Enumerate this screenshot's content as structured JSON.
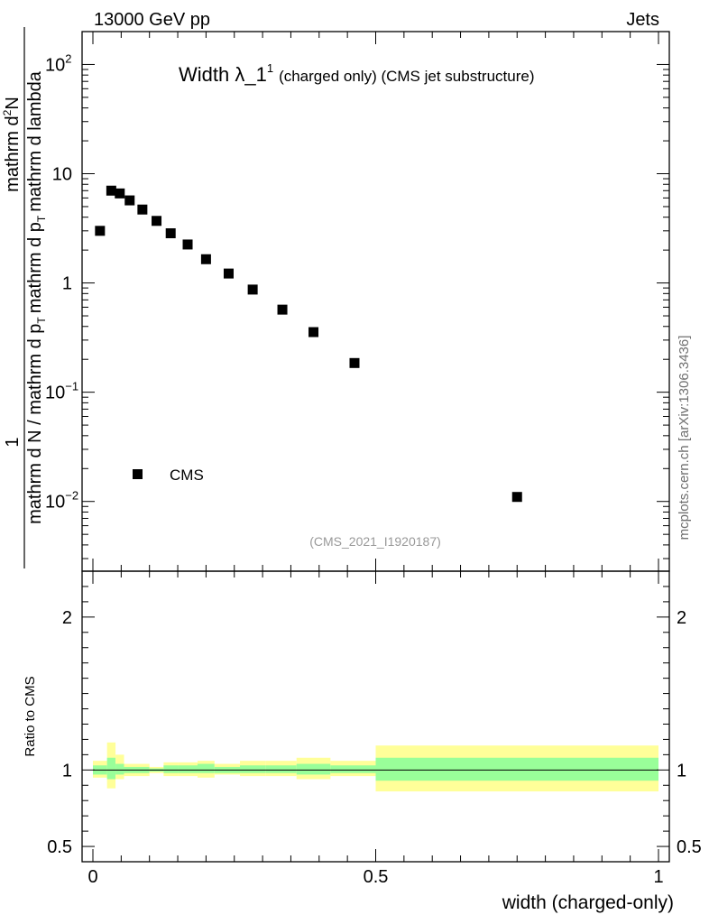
{
  "header": {
    "left": "13000 GeV pp",
    "right": "Jets"
  },
  "plot_title": {
    "main": "Width λ_1",
    "superscript": "1",
    "sub": "(charged only) (CMS jet substructure)"
  },
  "ylabel_main": {
    "numerator": "1",
    "denominator": "mathrm d N / mathrm d p",
    "denominator_sub": "T",
    "tail": "mathrm d p",
    "tail_sub": "T",
    "tail2": "mathrm d lambda",
    "top_num": "mathrm d",
    "top_sup": "2",
    "top_N": "N"
  },
  "ylabel_ratio": "Ratio to CMS",
  "xlabel": "width (charged-only)",
  "analysis_tag": "(CMS_2021_I1920187)",
  "side_watermark": "mcplots.cern.ch [arXiv:1306.3436]",
  "legend": {
    "label": "CMS"
  },
  "colors": {
    "marker": "#000000",
    "band_inner": "#99ff99",
    "band_outer": "#ffff99",
    "tag": "#999999"
  },
  "chart_data": [
    {
      "type": "scatter",
      "title": "Width λ_1^1 (charged only) (CMS jet substructure)",
      "xlabel": "width (charged-only)",
      "yscale": "log",
      "xlim": [
        0,
        1
      ],
      "ylim": [
        0.0023,
        200
      ],
      "y_ticks": [
        {
          "value": 0.01,
          "base": "10",
          "exp": "−2"
        },
        {
          "value": 0.1,
          "base": "10",
          "exp": "−1"
        },
        {
          "value": 1,
          "base": "1",
          "exp": ""
        },
        {
          "value": 10,
          "base": "10",
          "exp": ""
        },
        {
          "value": 100,
          "base": "10",
          "exp": "2"
        }
      ],
      "series": [
        {
          "name": "CMS",
          "x": [
            0.0125,
            0.0325,
            0.0475,
            0.065,
            0.0875,
            0.1125,
            0.1375,
            0.1675,
            0.2,
            0.24,
            0.2825,
            0.335,
            0.39,
            0.4625,
            0.75
          ],
          "y": [
            3.0,
            7.0,
            6.6,
            5.7,
            4.7,
            3.7,
            2.85,
            2.25,
            1.65,
            1.22,
            0.87,
            0.57,
            0.355,
            0.185,
            0.011
          ]
        }
      ]
    },
    {
      "type": "area",
      "ylabel": "Ratio to CMS",
      "xlim": [
        0,
        1
      ],
      "ylim": [
        0.4,
        2.3
      ],
      "y_ticks": [
        "0.5",
        "1",
        "2"
      ],
      "x_ticks": [
        "0",
        "0.5",
        "1"
      ],
      "reference_line": 1.0,
      "bins": [
        {
          "lo": 0.0,
          "hi": 0.025,
          "inner": [
            0.97,
            1.03
          ],
          "outer": [
            0.95,
            1.06
          ]
        },
        {
          "lo": 0.025,
          "hi": 0.04,
          "inner": [
            0.94,
            1.08
          ],
          "outer": [
            0.88,
            1.18
          ]
        },
        {
          "lo": 0.04,
          "hi": 0.055,
          "inner": [
            0.97,
            1.04
          ],
          "outer": [
            0.94,
            1.1
          ]
        },
        {
          "lo": 0.055,
          "hi": 0.075,
          "inner": [
            0.98,
            1.02
          ],
          "outer": [
            0.96,
            1.04
          ]
        },
        {
          "lo": 0.075,
          "hi": 0.1,
          "inner": [
            0.98,
            1.02
          ],
          "outer": [
            0.96,
            1.04
          ]
        },
        {
          "lo": 0.1,
          "hi": 0.125,
          "inner": [
            0.99,
            1.01
          ],
          "outer": [
            0.98,
            1.02
          ]
        },
        {
          "lo": 0.125,
          "hi": 0.15,
          "inner": [
            0.98,
            1.03
          ],
          "outer": [
            0.96,
            1.05
          ]
        },
        {
          "lo": 0.15,
          "hi": 0.185,
          "inner": [
            0.98,
            1.03
          ],
          "outer": [
            0.96,
            1.05
          ]
        },
        {
          "lo": 0.185,
          "hi": 0.215,
          "inner": [
            0.98,
            1.04
          ],
          "outer": [
            0.95,
            1.06
          ]
        },
        {
          "lo": 0.215,
          "hi": 0.26,
          "inner": [
            0.98,
            1.02
          ],
          "outer": [
            0.97,
            1.04
          ]
        },
        {
          "lo": 0.26,
          "hi": 0.305,
          "inner": [
            0.98,
            1.03
          ],
          "outer": [
            0.96,
            1.06
          ]
        },
        {
          "lo": 0.305,
          "hi": 0.36,
          "inner": [
            0.98,
            1.03
          ],
          "outer": [
            0.96,
            1.06
          ]
        },
        {
          "lo": 0.36,
          "hi": 0.42,
          "inner": [
            0.97,
            1.04
          ],
          "outer": [
            0.94,
            1.08
          ]
        },
        {
          "lo": 0.42,
          "hi": 0.5,
          "inner": [
            0.98,
            1.03
          ],
          "outer": [
            0.96,
            1.06
          ]
        },
        {
          "lo": 0.5,
          "hi": 1.0,
          "inner": [
            0.93,
            1.08
          ],
          "outer": [
            0.86,
            1.16
          ]
        }
      ]
    }
  ]
}
